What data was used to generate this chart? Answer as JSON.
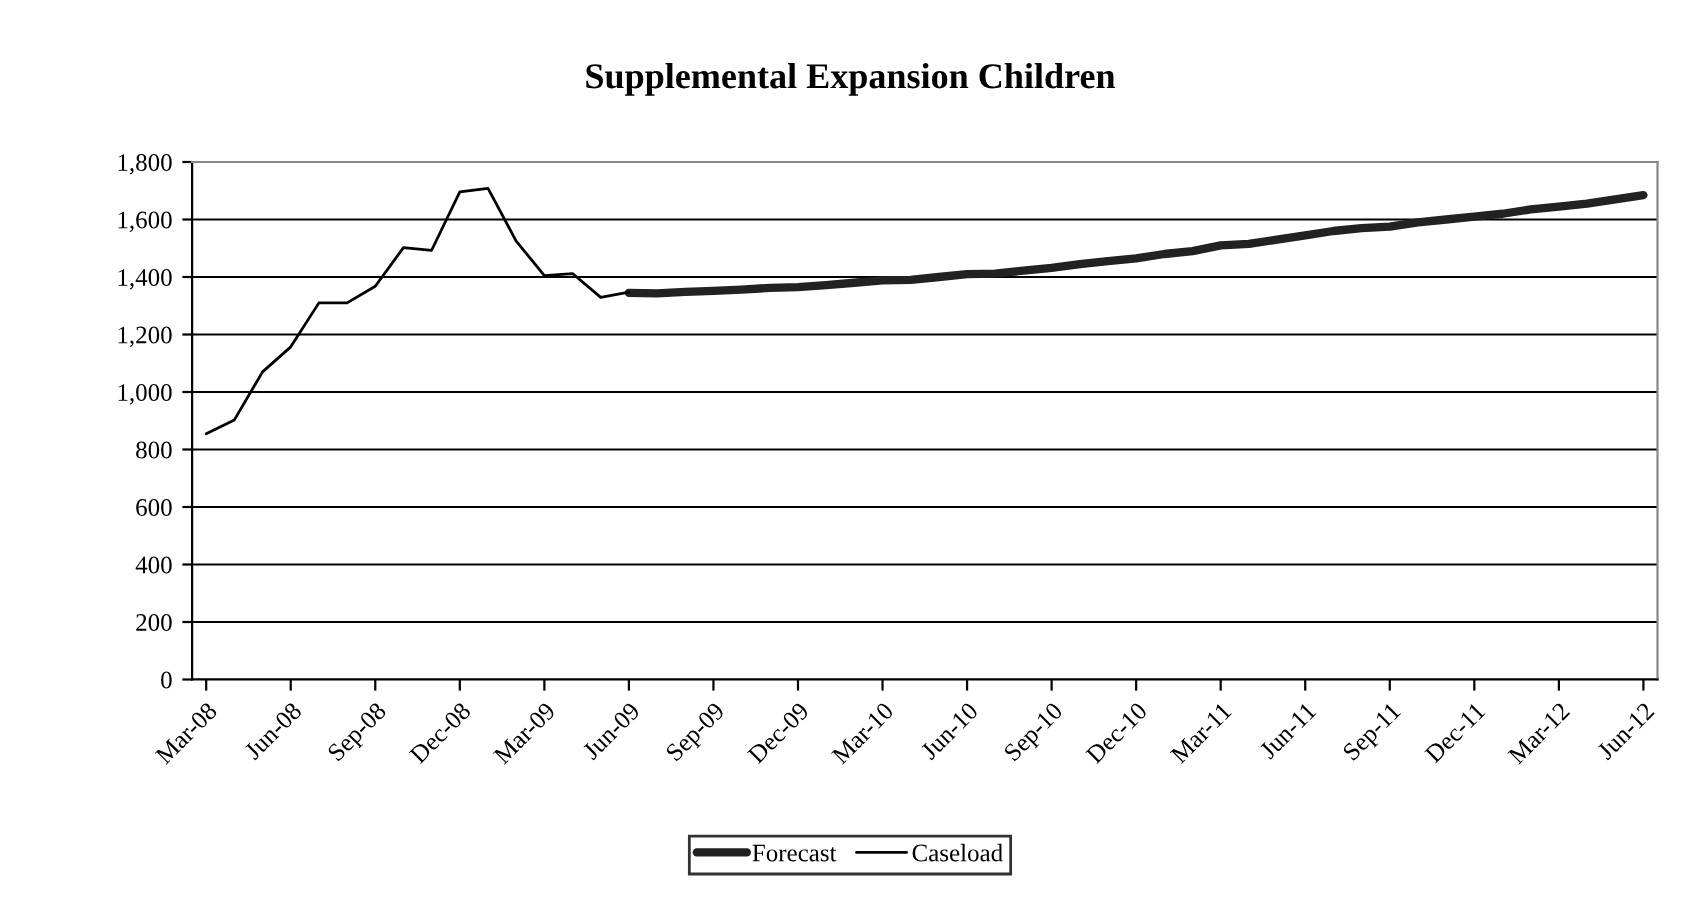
{
  "chart_data": {
    "type": "line",
    "title": "Supplemental Expansion Children",
    "categories": [
      "Mar-08",
      null,
      null,
      "Jun-08",
      null,
      null,
      "Sep-08",
      null,
      null,
      "Dec-08",
      null,
      null,
      "Mar-09",
      null,
      null,
      "Jun-09",
      null,
      null,
      "Sep-09",
      null,
      null,
      "Dec-09",
      null,
      null,
      "Mar-10",
      null,
      null,
      "Jun-10",
      null,
      null,
      "Sep-10",
      null,
      null,
      "Dec-10",
      null,
      null,
      "Mar-11",
      null,
      null,
      "Jun-11",
      null,
      null,
      "Sep-11",
      null,
      null,
      "Dec-11",
      null,
      null,
      "Mar-12",
      null,
      null,
      "Jun-12"
    ],
    "series": [
      {
        "name": "Forecast",
        "color": "#222222",
        "values": [
          null,
          null,
          null,
          null,
          null,
          null,
          null,
          null,
          null,
          null,
          null,
          null,
          null,
          null,
          null,
          1345,
          1343,
          1348,
          1352,
          1356,
          1362,
          1365,
          1372,
          1380,
          1388,
          1390,
          1400,
          1410,
          1412,
          1422,
          1432,
          1445,
          1455,
          1465,
          1480,
          1490,
          1510,
          1515,
          1530,
          1545,
          1560,
          1570,
          1575,
          1590,
          1600,
          1610,
          1620,
          1635,
          1645,
          1655,
          1670,
          1685
        ]
      },
      {
        "name": "Caseload",
        "color": "#000000",
        "values": [
          855,
          903,
          1070,
          1157,
          1310,
          1310,
          1368,
          1502,
          1493,
          1696,
          1708,
          1525,
          1405,
          1412,
          1329,
          1347,
          null,
          null,
          null,
          null,
          null,
          null,
          null,
          null,
          null,
          null,
          null,
          null,
          null,
          null,
          null,
          null,
          null,
          null,
          null,
          null,
          null,
          null,
          null,
          null,
          null,
          null,
          null,
          null,
          null,
          null,
          null,
          null,
          null,
          null,
          null,
          null
        ]
      }
    ],
    "ylim": [
      0,
      1800
    ],
    "yticks": [
      0,
      200,
      400,
      600,
      800,
      {
        "value": 1000,
        "label": "1,000"
      },
      {
        "value": 1200,
        "label": "1,200"
      },
      {
        "value": 1400,
        "label": "1,400"
      },
      {
        "value": 1600,
        "label": "1,600"
      },
      {
        "value": 1800,
        "label": "1,800"
      }
    ],
    "grid": "y",
    "legend": "bottom",
    "marker": "none",
    "line_style": "solid"
  }
}
